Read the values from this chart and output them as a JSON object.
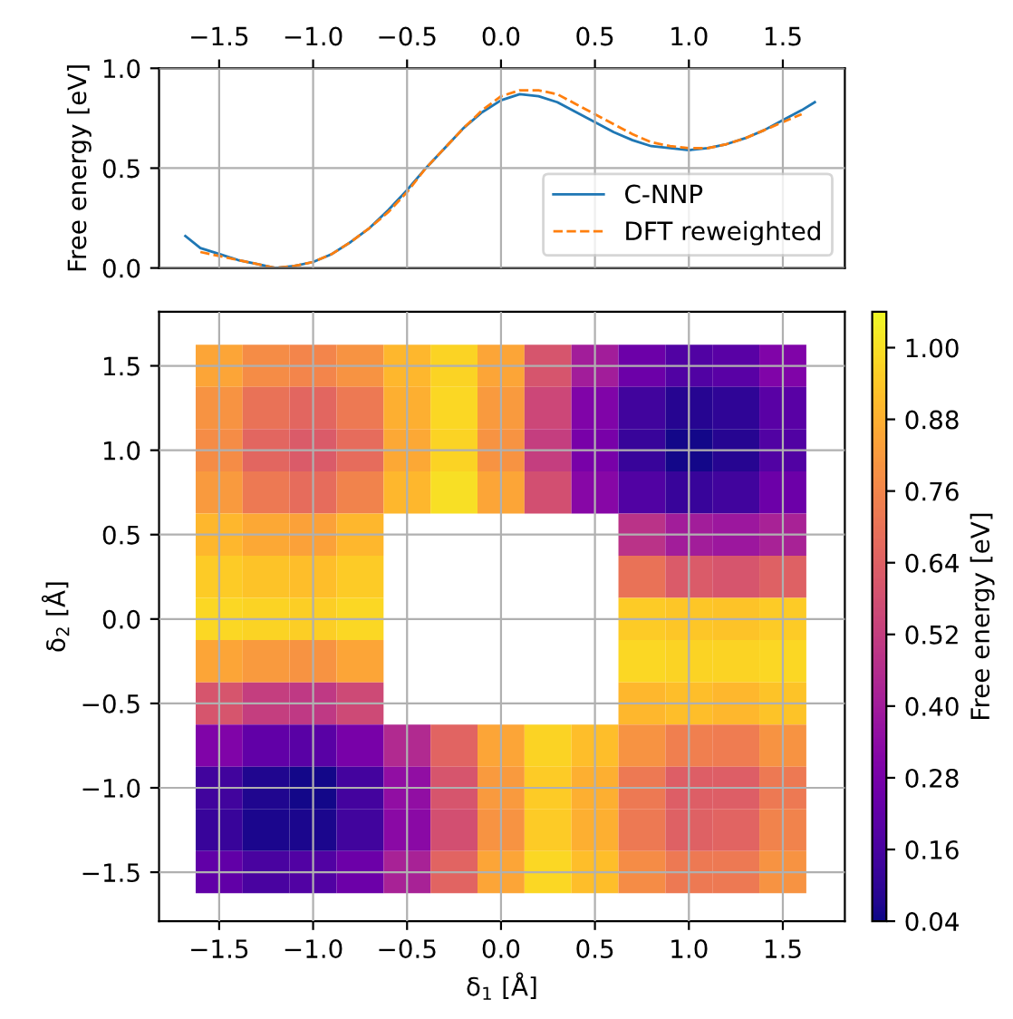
{
  "chart_data": [
    {
      "type": "line",
      "ylabel": "Free energy [eV]",
      "xlim": [
        -1.82,
        1.83
      ],
      "xticks": [
        {
          "value": -1.5,
          "label": "−1.5"
        },
        {
          "value": -1.0,
          "label": "−1.0"
        },
        {
          "value": -0.5,
          "label": "−0.5"
        },
        {
          "value": 0,
          "label": "0.0"
        },
        {
          "value": 0.5,
          "label": "0.5"
        },
        {
          "value": 1,
          "label": "1.0"
        },
        {
          "value": 1.5,
          "label": "1.5"
        }
      ],
      "ylim": [
        0,
        1
      ],
      "yticks": [
        {
          "value": 0,
          "label": "0.0"
        },
        {
          "value": 0.5,
          "label": "0.5"
        },
        {
          "value": 1,
          "label": "1.0"
        }
      ],
      "grid": true,
      "legend": "bottom right",
      "series": [
        {
          "name": "C-NNP",
          "color": "#1f77b4",
          "line_style": "solid",
          "x": [
            -1.68,
            -1.6,
            -1.5,
            -1.4,
            -1.3,
            -1.2,
            -1.1,
            -1.0,
            -0.9,
            -0.8,
            -0.7,
            -0.6,
            -0.5,
            -0.4,
            -0.3,
            -0.2,
            -0.1,
            0.0,
            0.1,
            0.2,
            0.3,
            0.4,
            0.5,
            0.6,
            0.7,
            0.8,
            0.9,
            1.0,
            1.1,
            1.2,
            1.3,
            1.4,
            1.5,
            1.6,
            1.67
          ],
          "values": [
            0.16,
            0.1,
            0.07,
            0.04,
            0.02,
            0.0,
            0.01,
            0.03,
            0.07,
            0.13,
            0.2,
            0.29,
            0.39,
            0.5,
            0.6,
            0.7,
            0.78,
            0.84,
            0.87,
            0.86,
            0.83,
            0.78,
            0.73,
            0.68,
            0.64,
            0.61,
            0.6,
            0.59,
            0.6,
            0.62,
            0.65,
            0.69,
            0.74,
            0.79,
            0.83
          ]
        },
        {
          "name": "DFT reweighted",
          "color": "#ff7f0e",
          "line_style": "dashed",
          "x": [
            -1.6,
            -1.5,
            -1.4,
            -1.3,
            -1.2,
            -1.1,
            -1.0,
            -0.9,
            -0.8,
            -0.7,
            -0.6,
            -0.5,
            -0.4,
            -0.3,
            -0.2,
            -0.1,
            0.0,
            0.1,
            0.2,
            0.3,
            0.4,
            0.5,
            0.6,
            0.7,
            0.8,
            0.9,
            1.0,
            1.1,
            1.2,
            1.3,
            1.4,
            1.5,
            1.6
          ],
          "values": [
            0.08,
            0.06,
            0.04,
            0.02,
            0.0,
            0.01,
            0.03,
            0.07,
            0.13,
            0.2,
            0.28,
            0.38,
            0.5,
            0.6,
            0.7,
            0.79,
            0.86,
            0.89,
            0.89,
            0.87,
            0.82,
            0.77,
            0.72,
            0.67,
            0.63,
            0.61,
            0.6,
            0.6,
            0.62,
            0.65,
            0.69,
            0.73,
            0.77
          ]
        }
      ]
    },
    {
      "type": "heatmap",
      "xlabel": "δ$_{1}$ [Å]",
      "ylabel": "δ$_{2}$ [Å]",
      "clabel": "Free energy [eV]",
      "x": [
        -1.5,
        -1.25,
        -1.0,
        -0.75,
        -0.5,
        -0.25,
        0.0,
        0.25,
        0.5,
        0.75,
        1.0,
        1.25,
        1.5
      ],
      "y": [
        1.5,
        1.25,
        1.0,
        0.75,
        0.5,
        0.25,
        0.0,
        -0.25,
        -0.5,
        -0.75,
        -1.0,
        -1.25,
        -1.5
      ],
      "xlim": [
        -1.82,
        1.83
      ],
      "ylim": [
        -1.79,
        1.82
      ],
      "xticks": [
        {
          "value": -1.5,
          "label": "−1.5"
        },
        {
          "value": -1.0,
          "label": "−1.0"
        },
        {
          "value": -0.5,
          "label": "−0.5"
        },
        {
          "value": 0,
          "label": "0.0"
        },
        0.5,
        {
          "value": 1,
          "label": "1.0"
        },
        1.5
      ],
      "yticks": [
        {
          "value": -1.5,
          "label": "−1.5"
        },
        {
          "value": -1.0,
          "label": "−1.0"
        },
        {
          "value": -0.5,
          "label": "−0.5"
        },
        {
          "value": 0,
          "label": "0.0"
        },
        0.5,
        {
          "value": 1,
          "label": "1.0"
        },
        1.5
      ],
      "tick_labels": true,
      "grid": true,
      "clim": [
        0.04,
        1.06
      ],
      "cticks": [
        0.04,
        0.16,
        0.28,
        {
          "value": 0.4,
          "label": "0.40"
        },
        0.52,
        0.64,
        0.76,
        0.88,
        {
          "value": 1,
          "label": "1.00"
        }
      ],
      "cells": [
        [
          0.85,
          0.78,
          0.76,
          0.8,
          0.9,
          0.97,
          0.85,
          0.6,
          0.4,
          0.25,
          0.18,
          0.2,
          0.3
        ],
        [
          0.8,
          0.7,
          0.66,
          0.72,
          0.88,
          0.98,
          0.82,
          0.55,
          0.3,
          0.14,
          0.08,
          0.1,
          0.2
        ],
        [
          0.78,
          0.66,
          0.62,
          0.68,
          0.86,
          0.97,
          0.8,
          0.52,
          0.28,
          0.12,
          0.05,
          0.08,
          0.18
        ],
        [
          0.82,
          0.72,
          0.68,
          0.75,
          0.9,
          1.0,
          0.85,
          0.58,
          0.32,
          0.18,
          0.12,
          0.14,
          0.25
        ],
        [
          0.9,
          0.86,
          0.84,
          0.9,
          null,
          null,
          null,
          null,
          null,
          0.48,
          0.4,
          0.38,
          0.42
        ],
        [
          0.95,
          0.93,
          0.92,
          0.95,
          null,
          null,
          null,
          null,
          null,
          0.7,
          0.62,
          0.6,
          0.64
        ],
        [
          0.98,
          0.97,
          0.96,
          0.98,
          null,
          null,
          null,
          null,
          null,
          0.95,
          0.94,
          0.93,
          0.95
        ],
        [
          0.85,
          0.82,
          0.8,
          0.85,
          null,
          null,
          null,
          null,
          null,
          0.98,
          0.97,
          0.97,
          0.98
        ],
        [
          0.6,
          0.52,
          0.5,
          0.56,
          null,
          null,
          null,
          null,
          null,
          0.9,
          0.92,
          0.9,
          0.93
        ],
        [
          0.3,
          0.22,
          0.2,
          0.28,
          0.45,
          0.65,
          0.85,
          0.97,
          0.92,
          0.8,
          0.74,
          0.73,
          0.8
        ],
        [
          0.14,
          0.07,
          0.05,
          0.15,
          0.35,
          0.6,
          0.82,
          0.95,
          0.88,
          0.72,
          0.63,
          0.63,
          0.72
        ],
        [
          0.12,
          0.06,
          0.06,
          0.14,
          0.33,
          0.58,
          0.8,
          0.95,
          0.88,
          0.72,
          0.64,
          0.65,
          0.75
        ],
        [
          0.22,
          0.16,
          0.18,
          0.25,
          0.42,
          0.65,
          0.85,
          0.98,
          0.92,
          0.78,
          0.72,
          0.72,
          0.8
        ]
      ]
    }
  ]
}
